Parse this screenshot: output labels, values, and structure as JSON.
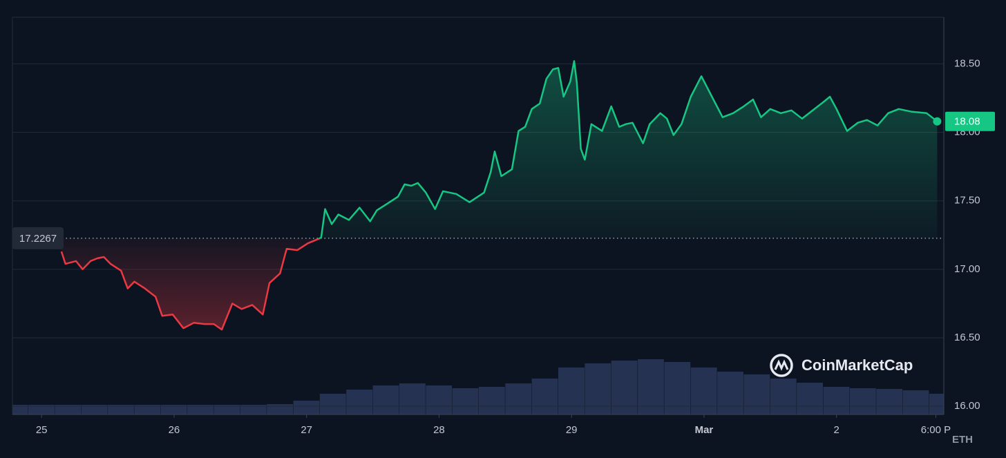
{
  "chart_data": {
    "type": "line",
    "x": [
      0.15,
      0.18,
      0.26,
      0.31,
      0.37,
      0.42,
      0.47,
      0.52,
      0.6,
      0.65,
      0.7,
      0.78,
      0.86,
      0.91,
      0.99,
      1.07,
      1.15,
      1.23,
      1.3,
      1.36,
      1.44,
      1.51,
      1.59,
      1.67,
      1.72,
      1.8,
      1.85,
      1.93,
      2.01,
      2.11,
      2.14,
      2.19,
      2.24,
      2.32,
      2.4,
      2.48,
      2.53,
      2.61,
      2.69,
      2.74,
      2.79,
      2.84,
      2.9,
      2.97,
      3.03,
      3.13,
      3.23,
      3.34,
      3.39,
      3.42,
      3.47,
      3.55,
      3.6,
      3.65,
      3.7,
      3.76,
      3.81,
      3.86,
      3.9,
      3.94,
      3.99,
      4.02,
      4.04,
      4.07,
      4.1,
      4.15,
      4.23,
      4.3,
      4.36,
      4.41,
      4.46,
      4.54,
      4.59,
      4.67,
      4.72,
      4.77,
      4.83,
      4.9,
      4.98,
      5.06,
      5.14,
      5.22,
      5.3,
      5.37,
      5.43,
      5.5,
      5.58,
      5.66,
      5.74,
      5.82,
      5.9,
      5.95,
      6.0,
      6.08,
      6.16,
      6.23,
      6.31,
      6.39,
      6.47,
      6.57,
      6.68,
      6.76
    ],
    "series": [
      {
        "name": "ETH",
        "values": [
          17.13,
          17.04,
          17.06,
          17.0,
          17.06,
          17.08,
          17.09,
          17.04,
          16.99,
          16.86,
          16.91,
          16.86,
          16.8,
          16.66,
          16.67,
          16.57,
          16.61,
          16.6,
          16.6,
          16.56,
          16.75,
          16.71,
          16.74,
          16.67,
          16.9,
          16.97,
          17.15,
          17.14,
          17.19,
          17.23,
          17.44,
          17.33,
          17.4,
          17.36,
          17.45,
          17.35,
          17.43,
          17.48,
          17.53,
          17.62,
          17.61,
          17.63,
          17.56,
          17.44,
          17.57,
          17.55,
          17.49,
          17.56,
          17.71,
          17.86,
          17.68,
          17.73,
          18.01,
          18.04,
          18.17,
          18.21,
          18.39,
          18.46,
          18.47,
          18.26,
          18.37,
          18.52,
          18.36,
          17.88,
          17.8,
          18.06,
          18.01,
          18.19,
          18.04,
          18.06,
          18.07,
          17.92,
          18.06,
          18.14,
          18.1,
          17.98,
          18.06,
          18.26,
          18.41,
          18.26,
          18.11,
          18.14,
          18.19,
          18.24,
          18.11,
          18.17,
          18.14,
          18.16,
          18.1,
          18.16,
          18.22,
          18.26,
          18.17,
          18.01,
          18.07,
          18.09,
          18.05,
          18.14,
          18.17,
          18.15,
          18.14,
          18.08
        ]
      }
    ],
    "up_color": "#16c784",
    "down_color": "#ea3943",
    "baseline": 17.2267,
    "last_price": 18.08,
    "volume": {
      "x": [
        -0.2,
        0,
        0.2,
        0.4,
        0.6,
        0.8,
        1,
        1.2,
        1.4,
        1.6,
        1.8,
        2,
        2.2,
        2.4,
        2.6,
        2.8,
        3,
        3.2,
        3.4,
        3.6,
        3.8,
        4,
        4.2,
        4.4,
        4.6,
        4.8,
        5,
        5.2,
        5.4,
        5.6,
        5.8,
        6,
        6.2,
        6.4,
        6.6,
        6.8
      ],
      "values": [
        14,
        14,
        14,
        14,
        14,
        14,
        14,
        14,
        14,
        14,
        15,
        20,
        30,
        36,
        42,
        45,
        42,
        38,
        40,
        45,
        52,
        68,
        74,
        78,
        80,
        76,
        68,
        62,
        58,
        52,
        46,
        40,
        38,
        37,
        35,
        30
      ],
      "color": "#2c3a5e"
    },
    "xlim": [
      -0.22,
      6.81
    ],
    "xticks": [
      {
        "value": 0,
        "label": "25"
      },
      {
        "value": 1,
        "label": "26"
      },
      {
        "value": 2,
        "label": "27"
      },
      {
        "value": 3,
        "label": "28"
      },
      {
        "value": 4,
        "label": "29"
      },
      {
        "value": 5,
        "label": "Mar"
      },
      {
        "value": 6,
        "label": "2"
      },
      {
        "value": 6.75,
        "label": "6:00 P"
      }
    ],
    "ylim": [
      15.94,
      18.84
    ],
    "yticks": [
      {
        "value": 16,
        "label": "16.00"
      },
      {
        "value": 16.5,
        "label": "16.50"
      },
      {
        "value": 17,
        "label": "17.00"
      },
      {
        "value": 17.5,
        "label": "17.50"
      },
      {
        "value": 18,
        "label": "18.00"
      },
      {
        "value": 18.5,
        "label": "18.50"
      }
    ],
    "grid": true,
    "currency": "ETH",
    "watermark": "CoinMarketCap"
  }
}
